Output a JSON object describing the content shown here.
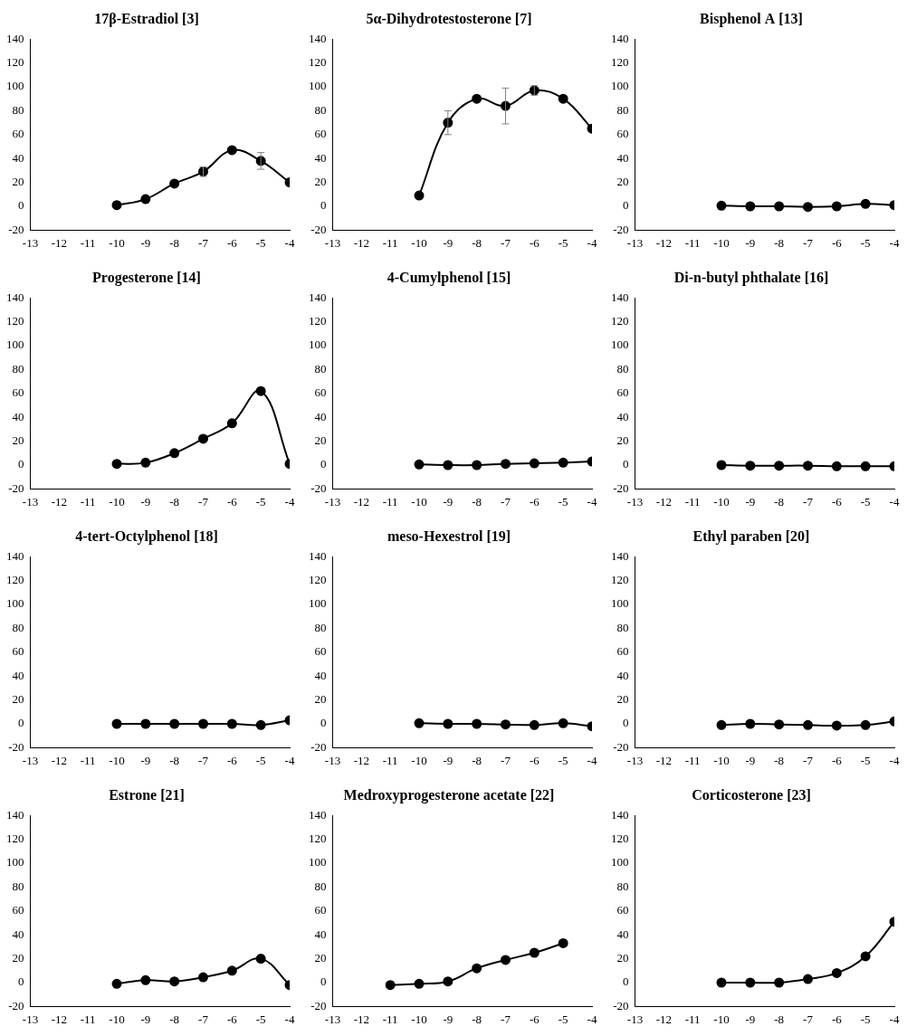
{
  "chart_data": [
    {
      "type": "line",
      "title": "17β-Estradiol [3]",
      "x": [
        -10,
        -9,
        -8,
        -7,
        -6,
        -5,
        -4
      ],
      "values": [
        1,
        6,
        19,
        29,
        47,
        38,
        20
      ],
      "errors": [
        null,
        null,
        null,
        4,
        null,
        7,
        null
      ],
      "xlim": [
        -13,
        -4
      ],
      "xticks": [
        -13,
        -12,
        -11,
        -10,
        -9,
        -8,
        -7,
        -6,
        -5,
        -4
      ],
      "ylim": [
        -20,
        140
      ],
      "yticks": [
        -20,
        0,
        20,
        40,
        60,
        80,
        100,
        120,
        140
      ],
      "grid": false,
      "color": "#000000",
      "marker": "circle"
    },
    {
      "type": "line",
      "title": "5α-Dihydrotestosterone [7]",
      "x": [
        -10,
        -9,
        -8,
        -7,
        -6,
        -5,
        -4
      ],
      "values": [
        9,
        70,
        90,
        84,
        97,
        90,
        65
      ],
      "errors": [
        null,
        10,
        null,
        15,
        4,
        null,
        null
      ],
      "xlim": [
        -13,
        -4
      ],
      "xticks": [
        -13,
        -12,
        -11,
        -10,
        -9,
        -8,
        -7,
        -6,
        -5,
        -4
      ],
      "ylim": [
        -20,
        140
      ],
      "yticks": [
        -20,
        0,
        20,
        40,
        60,
        80,
        100,
        120,
        140
      ],
      "grid": false,
      "color": "#000000",
      "marker": "circle"
    },
    {
      "type": "line",
      "title": "Bisphenol A [13]",
      "x": [
        -10,
        -9,
        -8,
        -7,
        -6,
        -5,
        -4
      ],
      "values": [
        0.5,
        0,
        0,
        -0.5,
        0,
        2,
        1
      ],
      "xlim": [
        -13,
        -4
      ],
      "xticks": [
        -13,
        -12,
        -11,
        -10,
        -9,
        -8,
        -7,
        -6,
        -5,
        -4
      ],
      "ylim": [
        -20,
        140
      ],
      "yticks": [
        -20,
        0,
        20,
        40,
        60,
        80,
        100,
        120,
        140
      ],
      "grid": false,
      "color": "#000000",
      "marker": "circle"
    },
    {
      "type": "line",
      "title": "Progesterone [14]",
      "x": [
        -10,
        -9,
        -8,
        -7,
        -6,
        -5,
        -4
      ],
      "values": [
        1,
        2,
        10,
        22,
        35,
        62,
        1
      ],
      "xlim": [
        -13,
        -4
      ],
      "xticks": [
        -13,
        -12,
        -11,
        -10,
        -9,
        -8,
        -7,
        -6,
        -5,
        -4
      ],
      "ylim": [
        -20,
        140
      ],
      "yticks": [
        -20,
        0,
        20,
        40,
        60,
        80,
        100,
        120,
        140
      ],
      "grid": false,
      "color": "#000000",
      "marker": "circle"
    },
    {
      "type": "line",
      "title": "4-Cumylphenol [15]",
      "x": [
        -10,
        -9,
        -8,
        -7,
        -6,
        -5,
        -4
      ],
      "values": [
        0.5,
        0,
        0,
        1,
        1.5,
        2,
        3
      ],
      "xlim": [
        -13,
        -4
      ],
      "xticks": [
        -13,
        -12,
        -11,
        -10,
        -9,
        -8,
        -7,
        -6,
        -5,
        -4
      ],
      "ylim": [
        -20,
        140
      ],
      "yticks": [
        -20,
        0,
        20,
        40,
        60,
        80,
        100,
        120,
        140
      ],
      "grid": false,
      "color": "#000000",
      "marker": "circle"
    },
    {
      "type": "line",
      "title": "Di-n-butyl phthalate [16]",
      "x": [
        -10,
        -9,
        -8,
        -7,
        -6,
        -5,
        -4
      ],
      "values": [
        0,
        -0.5,
        -0.5,
        -0.5,
        -1,
        -1,
        -1
      ],
      "xlim": [
        -13,
        -4
      ],
      "xticks": [
        -13,
        -12,
        -11,
        -10,
        -9,
        -8,
        -7,
        -6,
        -5,
        -4
      ],
      "ylim": [
        -20,
        140
      ],
      "yticks": [
        -20,
        0,
        20,
        40,
        60,
        80,
        100,
        120,
        140
      ],
      "grid": false,
      "color": "#000000",
      "marker": "circle"
    },
    {
      "type": "line",
      "title": "4-tert-Octylphenol [18]",
      "x": [
        -10,
        -9,
        -8,
        -7,
        -6,
        -5,
        -4
      ],
      "values": [
        0,
        0,
        0,
        0,
        0,
        -1,
        3
      ],
      "xlim": [
        -13,
        -4
      ],
      "xticks": [
        -13,
        -12,
        -11,
        -10,
        -9,
        -8,
        -7,
        -6,
        -5,
        -4
      ],
      "ylim": [
        -20,
        140
      ],
      "yticks": [
        -20,
        0,
        20,
        40,
        60,
        80,
        100,
        120,
        140
      ],
      "grid": false,
      "color": "#000000",
      "marker": "circle"
    },
    {
      "type": "line",
      "title": "meso-Hexestrol [19]",
      "x": [
        -10,
        -9,
        -8,
        -7,
        -6,
        -5,
        -4
      ],
      "values": [
        0.5,
        0,
        0,
        -0.5,
        -1,
        0.5,
        -2
      ],
      "xlim": [
        -13,
        -4
      ],
      "xticks": [
        -13,
        -12,
        -11,
        -10,
        -9,
        -8,
        -7,
        -6,
        -5,
        -4
      ],
      "ylim": [
        -20,
        140
      ],
      "yticks": [
        -20,
        0,
        20,
        40,
        60,
        80,
        100,
        120,
        140
      ],
      "grid": false,
      "color": "#000000",
      "marker": "circle"
    },
    {
      "type": "line",
      "title": "Ethyl paraben [20]",
      "x": [
        -10,
        -9,
        -8,
        -7,
        -6,
        -5,
        -4
      ],
      "values": [
        -1,
        0,
        -0.5,
        -1,
        -1.5,
        -1,
        2
      ],
      "xlim": [
        -13,
        -4
      ],
      "xticks": [
        -13,
        -12,
        -11,
        -10,
        -9,
        -8,
        -7,
        -6,
        -5,
        -4
      ],
      "ylim": [
        -20,
        140
      ],
      "yticks": [
        -20,
        0,
        20,
        40,
        60,
        80,
        100,
        120,
        140
      ],
      "grid": false,
      "color": "#000000",
      "marker": "circle"
    },
    {
      "type": "line",
      "title": "Estrone [21]",
      "x": [
        -10,
        -9,
        -8,
        -7,
        -6,
        -5,
        -4
      ],
      "values": [
        -1,
        2,
        1,
        4.5,
        10,
        20,
        -2
      ],
      "xlim": [
        -13,
        -4
      ],
      "xticks": [
        -13,
        -12,
        -11,
        -10,
        -9,
        -8,
        -7,
        -6,
        -5,
        -4
      ],
      "ylim": [
        -20,
        140
      ],
      "yticks": [
        -20,
        0,
        20,
        40,
        60,
        80,
        100,
        120,
        140
      ],
      "grid": false,
      "color": "#000000",
      "marker": "circle"
    },
    {
      "type": "line",
      "title": "Medroxyprogesterone acetate [22]",
      "x": [
        -11,
        -10,
        -9,
        -8,
        -7,
        -6,
        -5
      ],
      "values": [
        -2,
        -1,
        1,
        12,
        19,
        25,
        33
      ],
      "xlim": [
        -13,
        -4
      ],
      "xticks": [
        -13,
        -12,
        -11,
        -10,
        -9,
        -8,
        -7,
        -6,
        -5,
        -4
      ],
      "ylim": [
        -20,
        140
      ],
      "yticks": [
        -20,
        0,
        20,
        40,
        60,
        80,
        100,
        120,
        140
      ],
      "grid": false,
      "color": "#000000",
      "marker": "circle"
    },
    {
      "type": "line",
      "title": "Corticosterone [23]",
      "x": [
        -10,
        -9,
        -8,
        -7,
        -6,
        -5,
        -4
      ],
      "values": [
        0,
        0,
        0,
        3,
        8,
        22,
        51
      ],
      "xlim": [
        -13,
        -4
      ],
      "xticks": [
        -13,
        -12,
        -11,
        -10,
        -9,
        -8,
        -7,
        -6,
        -5,
        -4
      ],
      "ylim": [
        -20,
        140
      ],
      "yticks": [
        -20,
        0,
        20,
        40,
        60,
        80,
        100,
        120,
        140
      ],
      "grid": false,
      "color": "#000000",
      "marker": "circle"
    }
  ]
}
